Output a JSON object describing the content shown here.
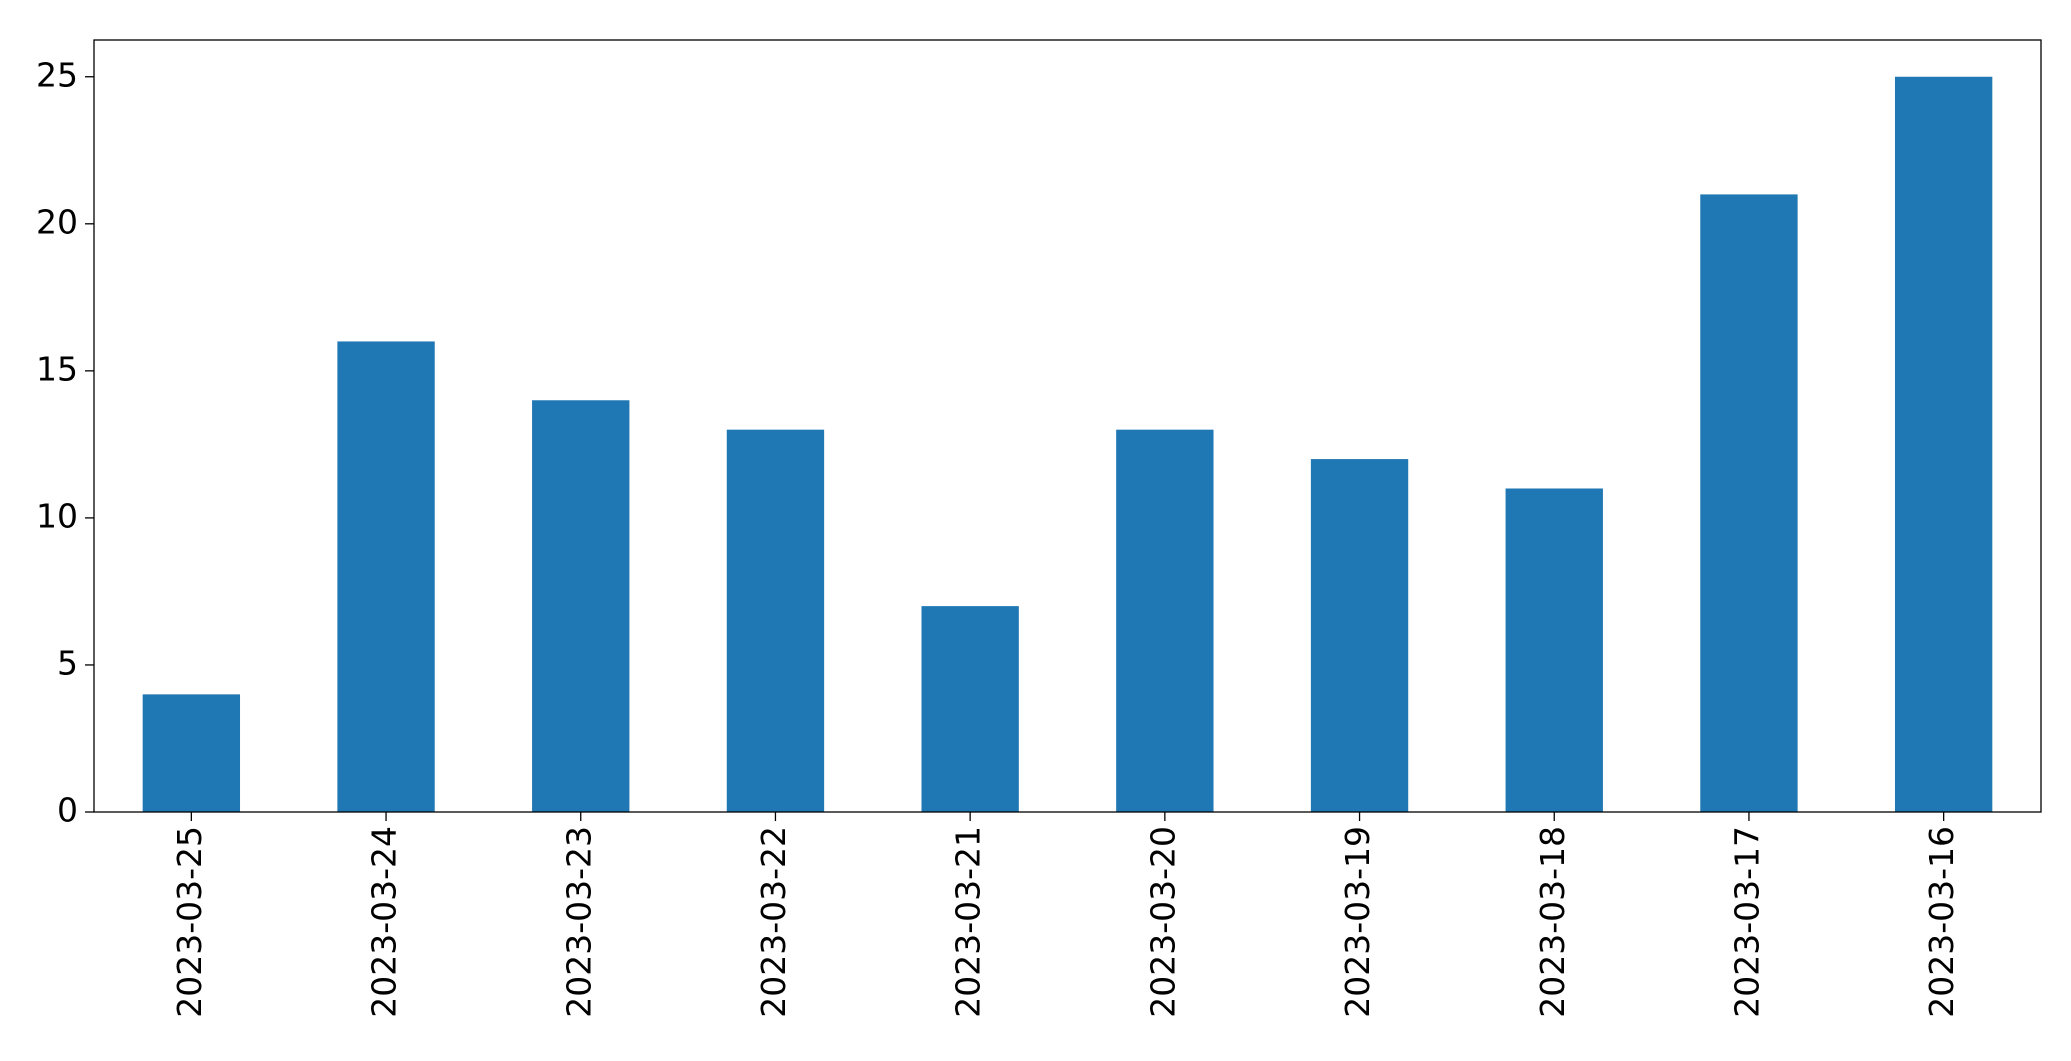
{
  "chart_data": {
    "type": "bar",
    "categories": [
      "2023-03-25",
      "2023-03-24",
      "2023-03-23",
      "2023-03-22",
      "2023-03-21",
      "2023-03-20",
      "2023-03-19",
      "2023-03-18",
      "2023-03-17",
      "2023-03-16"
    ],
    "values": [
      4,
      16,
      14,
      13,
      7,
      13,
      12,
      11,
      21,
      25
    ],
    "color": "#1f77b4",
    "ylim": [
      0,
      26.25
    ],
    "yticks": [
      0,
      5,
      10,
      15,
      20,
      25
    ],
    "grid": false
  }
}
